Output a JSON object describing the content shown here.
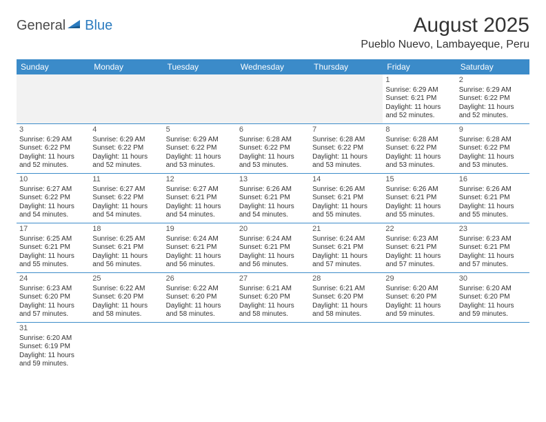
{
  "logo": {
    "general": "General",
    "blue": "Blue"
  },
  "title": "August 2025",
  "location": "Pueblo Nuevo, Lambayeque, Peru",
  "colors": {
    "header_bg": "#3b8bc9",
    "header_fg": "#ffffff",
    "border": "#3b8bc9",
    "empty_bg": "#f2f2f2"
  },
  "day_headers": [
    "Sunday",
    "Monday",
    "Tuesday",
    "Wednesday",
    "Thursday",
    "Friday",
    "Saturday"
  ],
  "leading_blanks": 5,
  "days": [
    {
      "n": "1",
      "sunrise": "6:29 AM",
      "sunset": "6:21 PM",
      "daylight": "11 hours and 52 minutes."
    },
    {
      "n": "2",
      "sunrise": "6:29 AM",
      "sunset": "6:22 PM",
      "daylight": "11 hours and 52 minutes."
    },
    {
      "n": "3",
      "sunrise": "6:29 AM",
      "sunset": "6:22 PM",
      "daylight": "11 hours and 52 minutes."
    },
    {
      "n": "4",
      "sunrise": "6:29 AM",
      "sunset": "6:22 PM",
      "daylight": "11 hours and 52 minutes."
    },
    {
      "n": "5",
      "sunrise": "6:29 AM",
      "sunset": "6:22 PM",
      "daylight": "11 hours and 53 minutes."
    },
    {
      "n": "6",
      "sunrise": "6:28 AM",
      "sunset": "6:22 PM",
      "daylight": "11 hours and 53 minutes."
    },
    {
      "n": "7",
      "sunrise": "6:28 AM",
      "sunset": "6:22 PM",
      "daylight": "11 hours and 53 minutes."
    },
    {
      "n": "8",
      "sunrise": "6:28 AM",
      "sunset": "6:22 PM",
      "daylight": "11 hours and 53 minutes."
    },
    {
      "n": "9",
      "sunrise": "6:28 AM",
      "sunset": "6:22 PM",
      "daylight": "11 hours and 53 minutes."
    },
    {
      "n": "10",
      "sunrise": "6:27 AM",
      "sunset": "6:22 PM",
      "daylight": "11 hours and 54 minutes."
    },
    {
      "n": "11",
      "sunrise": "6:27 AM",
      "sunset": "6:22 PM",
      "daylight": "11 hours and 54 minutes."
    },
    {
      "n": "12",
      "sunrise": "6:27 AM",
      "sunset": "6:21 PM",
      "daylight": "11 hours and 54 minutes."
    },
    {
      "n": "13",
      "sunrise": "6:26 AM",
      "sunset": "6:21 PM",
      "daylight": "11 hours and 54 minutes."
    },
    {
      "n": "14",
      "sunrise": "6:26 AM",
      "sunset": "6:21 PM",
      "daylight": "11 hours and 55 minutes."
    },
    {
      "n": "15",
      "sunrise": "6:26 AM",
      "sunset": "6:21 PM",
      "daylight": "11 hours and 55 minutes."
    },
    {
      "n": "16",
      "sunrise": "6:26 AM",
      "sunset": "6:21 PM",
      "daylight": "11 hours and 55 minutes."
    },
    {
      "n": "17",
      "sunrise": "6:25 AM",
      "sunset": "6:21 PM",
      "daylight": "11 hours and 55 minutes."
    },
    {
      "n": "18",
      "sunrise": "6:25 AM",
      "sunset": "6:21 PM",
      "daylight": "11 hours and 56 minutes."
    },
    {
      "n": "19",
      "sunrise": "6:24 AM",
      "sunset": "6:21 PM",
      "daylight": "11 hours and 56 minutes."
    },
    {
      "n": "20",
      "sunrise": "6:24 AM",
      "sunset": "6:21 PM",
      "daylight": "11 hours and 56 minutes."
    },
    {
      "n": "21",
      "sunrise": "6:24 AM",
      "sunset": "6:21 PM",
      "daylight": "11 hours and 57 minutes."
    },
    {
      "n": "22",
      "sunrise": "6:23 AM",
      "sunset": "6:21 PM",
      "daylight": "11 hours and 57 minutes."
    },
    {
      "n": "23",
      "sunrise": "6:23 AM",
      "sunset": "6:21 PM",
      "daylight": "11 hours and 57 minutes."
    },
    {
      "n": "24",
      "sunrise": "6:23 AM",
      "sunset": "6:20 PM",
      "daylight": "11 hours and 57 minutes."
    },
    {
      "n": "25",
      "sunrise": "6:22 AM",
      "sunset": "6:20 PM",
      "daylight": "11 hours and 58 minutes."
    },
    {
      "n": "26",
      "sunrise": "6:22 AM",
      "sunset": "6:20 PM",
      "daylight": "11 hours and 58 minutes."
    },
    {
      "n": "27",
      "sunrise": "6:21 AM",
      "sunset": "6:20 PM",
      "daylight": "11 hours and 58 minutes."
    },
    {
      "n": "28",
      "sunrise": "6:21 AM",
      "sunset": "6:20 PM",
      "daylight": "11 hours and 58 minutes."
    },
    {
      "n": "29",
      "sunrise": "6:20 AM",
      "sunset": "6:20 PM",
      "daylight": "11 hours and 59 minutes."
    },
    {
      "n": "30",
      "sunrise": "6:20 AM",
      "sunset": "6:20 PM",
      "daylight": "11 hours and 59 minutes."
    },
    {
      "n": "31",
      "sunrise": "6:20 AM",
      "sunset": "6:19 PM",
      "daylight": "11 hours and 59 minutes."
    }
  ],
  "labels": {
    "sunrise": "Sunrise: ",
    "sunset": "Sunset: ",
    "daylight": "Daylight: "
  }
}
